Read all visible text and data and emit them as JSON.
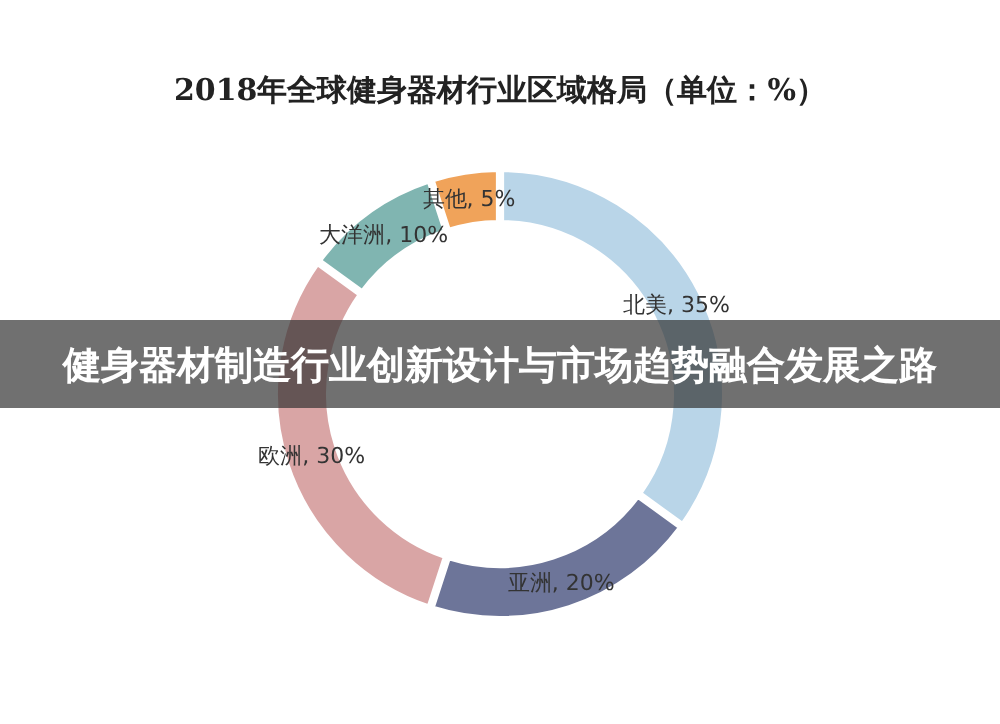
{
  "chart_data": {
    "type": "donut",
    "title": "2018年全球健身器材行业区域格局（单位：%）",
    "categories": [
      "北美",
      "亚洲",
      "欧洲",
      "大洋洲",
      "其他"
    ],
    "values": [
      35,
      20,
      30,
      10,
      5
    ],
    "colors": [
      "#b9d5e8",
      "#6d7599",
      "#d9a5a5",
      "#80b5b1",
      "#f0a35a"
    ],
    "value_labels": [
      "35%",
      "20%",
      "30%",
      "10%",
      "5%"
    ],
    "annotations": [
      "健身器材制造行业创新设计与市场趋势融合发展之路"
    ]
  }
}
